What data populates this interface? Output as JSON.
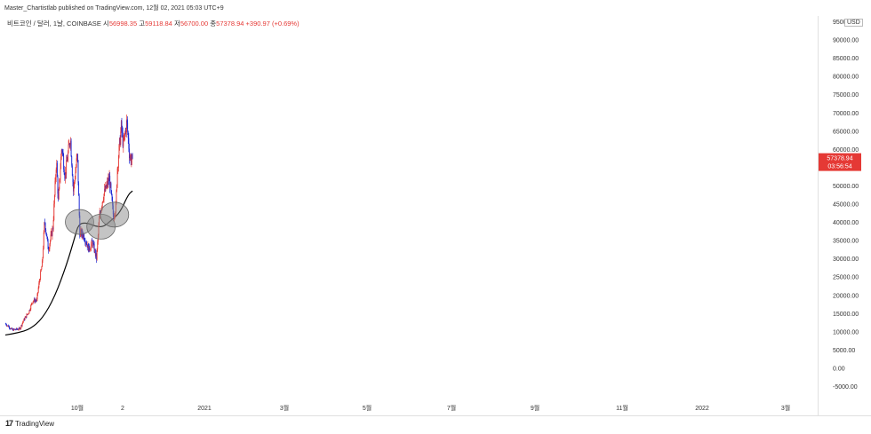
{
  "header": {
    "publisher_line": "Master_Chartistlab published on TradingView.com, 12월 02, 2021 05:03 UTC+9"
  },
  "legend": {
    "symbol": "비트코인 / 달러, 1날, COINBASE",
    "open_label": "시",
    "open_value": "56998.35",
    "high_label": "고",
    "high_value": "59118.84",
    "low_label": "저",
    "low_value": "56700.00",
    "close_label": "종",
    "close_value": "57378.94",
    "change": "+390.97 (+0.69%)"
  },
  "currency_badge": "USD",
  "price_tag": {
    "price": "57378.94",
    "countdown": "03:56:54"
  },
  "footer": {
    "brand": "TradingView",
    "logo_text": "17"
  },
  "colors": {
    "up": "#e53935",
    "down": "#1e2bd6",
    "ma": "#000000",
    "price_tag": "#e53935",
    "ellipse": "#8a8a8a"
  },
  "chart_data": {
    "type": "candlestick",
    "title": "",
    "ylabel": "",
    "y_axis_ticks": [
      "95000.00",
      "90000.00",
      "85000.00",
      "80000.00",
      "75000.00",
      "70000.00",
      "65000.00",
      "60000.00",
      "55000.00",
      "50000.00",
      "45000.00",
      "40000.00",
      "35000.00",
      "30000.00",
      "25000.00",
      "20000.00",
      "15000.00",
      "10000.00",
      "5000.00",
      "0.00",
      "-5000.00"
    ],
    "ylim": [
      -6000,
      96000
    ],
    "x_axis_ticks": [
      "10월",
      "2",
      "2021",
      "3월",
      "5월",
      "7월",
      "9월",
      "11월",
      "2022",
      "3월"
    ],
    "price_path": [
      {
        "date": "2020-08-20",
        "price": 11800
      },
      {
        "date": "2020-09-10",
        "price": 10400
      },
      {
        "date": "2020-10-08",
        "price": 10700
      },
      {
        "date": "2020-10-21",
        "price": 12900
      },
      {
        "date": "2020-11-10",
        "price": 15300
      },
      {
        "date": "2020-11-25",
        "price": 18400
      },
      {
        "date": "2020-12-10",
        "price": 18500
      },
      {
        "date": "2020-12-17",
        "price": 22500
      },
      {
        "date": "2020-12-31",
        "price": 29000
      },
      {
        "date": "2021-01-08",
        "price": 40500
      },
      {
        "date": "2021-01-22",
        "price": 32500
      },
      {
        "date": "2021-02-08",
        "price": 38500
      },
      {
        "date": "2021-02-21",
        "price": 57000
      },
      {
        "date": "2021-02-28",
        "price": 45500
      },
      {
        "date": "2021-03-13",
        "price": 61000
      },
      {
        "date": "2021-03-25",
        "price": 52500
      },
      {
        "date": "2021-04-14",
        "price": 63500
      },
      {
        "date": "2021-04-25",
        "price": 48500
      },
      {
        "date": "2021-05-10",
        "price": 58500
      },
      {
        "date": "2021-05-19",
        "price": 37000
      },
      {
        "date": "2021-06-01",
        "price": 36500
      },
      {
        "date": "2021-06-22",
        "price": 32500
      },
      {
        "date": "2021-07-05",
        "price": 34500
      },
      {
        "date": "2021-07-20",
        "price": 30000
      },
      {
        "date": "2021-07-31",
        "price": 41500
      },
      {
        "date": "2021-08-14",
        "price": 47000
      },
      {
        "date": "2021-09-06",
        "price": 52000
      },
      {
        "date": "2021-09-21",
        "price": 41500
      },
      {
        "date": "2021-09-30",
        "price": 44000
      },
      {
        "date": "2021-10-06",
        "price": 55000
      },
      {
        "date": "2021-10-20",
        "price": 66000
      },
      {
        "date": "2021-10-28",
        "price": 61000
      },
      {
        "date": "2021-11-10",
        "price": 67500
      },
      {
        "date": "2021-11-20",
        "price": 58000
      },
      {
        "date": "2021-11-28",
        "price": 57000
      },
      {
        "date": "2021-12-01",
        "price": 57378.94
      }
    ],
    "series": [
      {
        "values_kind": "moving average",
        "points": [
          {
            "date": "2020-08-15",
            "value": 9000
          },
          {
            "date": "2020-10-01",
            "value": 9600
          },
          {
            "date": "2020-11-15",
            "value": 10600
          },
          {
            "date": "2020-12-31",
            "value": 13500
          },
          {
            "date": "2021-02-15",
            "value": 19500
          },
          {
            "date": "2021-04-01",
            "value": 28500
          },
          {
            "date": "2021-05-01",
            "value": 36000
          },
          {
            "date": "2021-05-15",
            "value": 39500
          },
          {
            "date": "2021-06-15",
            "value": 39800
          },
          {
            "date": "2021-07-15",
            "value": 38800
          },
          {
            "date": "2021-08-15",
            "value": 38600
          },
          {
            "date": "2021-09-15",
            "value": 40600
          },
          {
            "date": "2021-10-15",
            "value": 42500
          },
          {
            "date": "2021-11-15",
            "value": 47500
          },
          {
            "date": "2021-12-01",
            "value": 48500
          }
        ]
      }
    ],
    "highlights": [
      {
        "date": "2021-05-18",
        "price": 40000
      },
      {
        "date": "2021-08-06",
        "price": 38700
      },
      {
        "date": "2021-09-25",
        "price": 42000
      }
    ],
    "grid": false,
    "legend_position": "top-left"
  }
}
